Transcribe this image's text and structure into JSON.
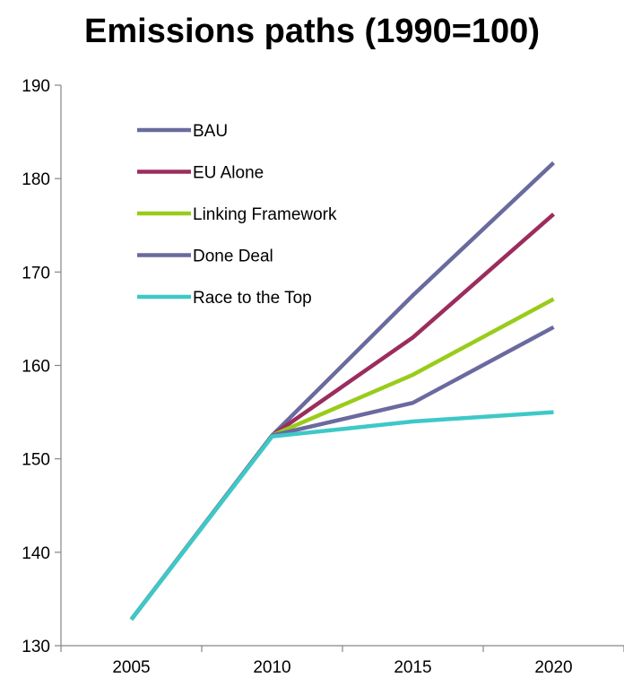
{
  "chart_data": {
    "type": "line",
    "title": "Emissions paths (1990=100)",
    "xlabel": "",
    "ylabel": "",
    "categories": [
      "2005",
      "2010",
      "2015",
      "2020"
    ],
    "ylim": [
      130,
      190
    ],
    "yticks": [
      130,
      140,
      150,
      160,
      170,
      180,
      190
    ],
    "grid": false,
    "legend_position": "top-left, inside plot",
    "series": [
      {
        "name": "BAU",
        "color": "#6a6a9f",
        "values": [
          132.8,
          152.5,
          167.5,
          181.7
        ]
      },
      {
        "name": "EU Alone",
        "color": "#9b2d5d",
        "values": [
          132.8,
          152.5,
          163.0,
          176.2
        ]
      },
      {
        "name": "Linking Framework",
        "color": "#99cc1a",
        "values": [
          132.8,
          152.5,
          159.0,
          167.1
        ]
      },
      {
        "name": "Done Deal",
        "color": "#6a6a9f",
        "values": [
          132.8,
          152.5,
          156.0,
          164.1
        ]
      },
      {
        "name": "Race to the Top",
        "color": "#3ec8c8",
        "values": [
          132.8,
          152.4,
          154.0,
          155.0
        ]
      }
    ]
  }
}
